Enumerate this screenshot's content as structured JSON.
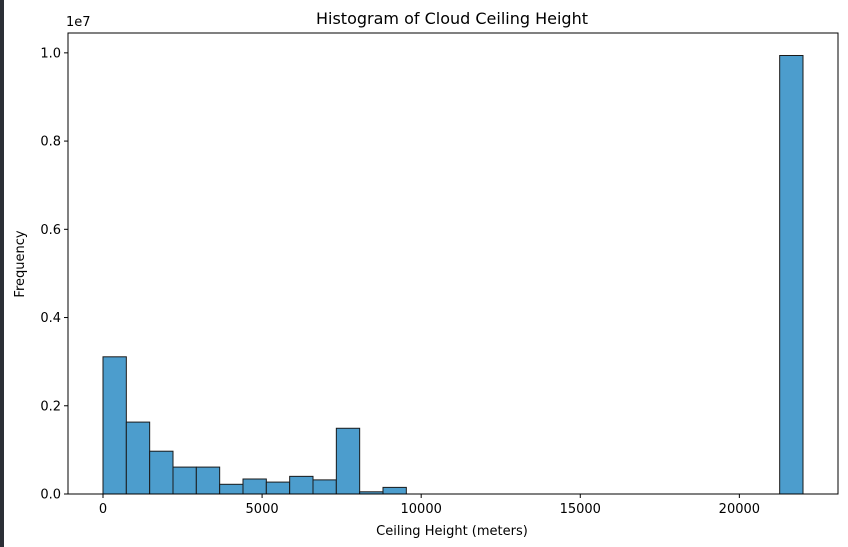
{
  "chart_data": {
    "type": "bar",
    "title": "Histogram of Cloud Ceiling Height",
    "xlabel": "Ceiling Height (meters)",
    "ylabel": "Frequency",
    "y_offset_label": "1e7",
    "y_multiplier": 10000000,
    "xlim": [
      -1100,
      23100
    ],
    "ylim": [
      0,
      1.045
    ],
    "x_ticks": [
      0,
      5000,
      10000,
      15000,
      20000
    ],
    "y_ticks": [
      0.0,
      0.2,
      0.4,
      0.6,
      0.8,
      1.0
    ],
    "x_tick_labels": [
      "0",
      "5000",
      "10000",
      "15000",
      "20000"
    ],
    "y_tick_labels": [
      "0.0",
      "0.2",
      "0.4",
      "0.6",
      "0.8",
      "1.0"
    ],
    "bin_width": 733.33,
    "bin_starts": [
      0,
      733.33,
      1466.67,
      2200,
      2933.33,
      3666.67,
      4400,
      5133.33,
      5866.67,
      6600,
      7333.33,
      8066.67,
      8800,
      21266.67
    ],
    "values": [
      0.311,
      0.163,
      0.097,
      0.061,
      0.061,
      0.022,
      0.034,
      0.027,
      0.04,
      0.032,
      0.149,
      0.005,
      0.015,
      0.994
    ],
    "bar_color": "#4c9dcd",
    "edge_color": "#1a1a1a",
    "grid": false,
    "legend": "none"
  }
}
